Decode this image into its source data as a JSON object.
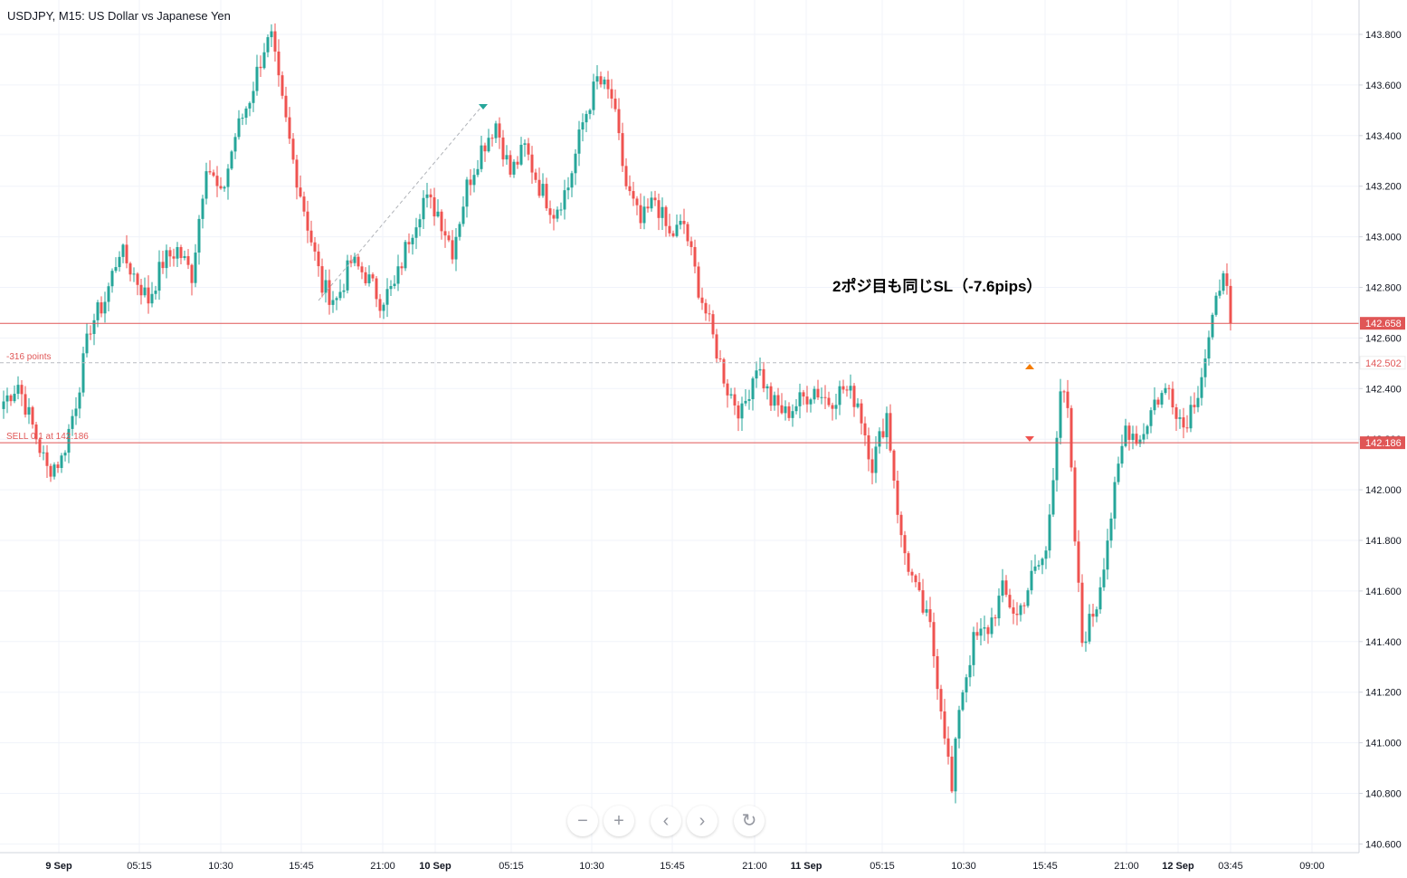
{
  "header": {
    "title": "USDJPY, M15: US Dollar vs Japanese Yen"
  },
  "annotation": {
    "text": "2ポジ目も同じSL（-7.6pips）"
  },
  "navigation": {
    "zoom_out": "−",
    "zoom_in": "+",
    "scroll_left": "‹",
    "scroll_right": "›",
    "reset": "↻"
  },
  "colors": {
    "up": "#26a69a",
    "down": "#ef5350",
    "grid": "#f0f3fa",
    "axis_text": "#131722",
    "sl_line": "#e05656"
  },
  "chart_data": {
    "type": "candlestick",
    "symbol": "USDJPY",
    "timeframe": "M15",
    "ylim": [
      140.58,
      143.92
    ],
    "y_ticks": [
      "143.800",
      "143.600",
      "143.400",
      "143.200",
      "143.000",
      "142.800",
      "142.600",
      "142.400",
      "142.200",
      "142.000",
      "141.800",
      "141.600",
      "141.400",
      "141.200",
      "141.000",
      "140.800",
      "140.600"
    ],
    "x_ticks": [
      {
        "label": "9 Sep",
        "bold": true,
        "index": 0
      },
      {
        "label": "05:15",
        "bold": false,
        "index": 1
      },
      {
        "label": "10:30",
        "bold": false,
        "index": 2
      },
      {
        "label": "15:45",
        "bold": false,
        "index": 3
      },
      {
        "label": "21:00",
        "bold": false,
        "index": 4
      },
      {
        "label": "10 Sep",
        "bold": true,
        "index": 5
      },
      {
        "label": "05:15",
        "bold": false,
        "index": 6
      },
      {
        "label": "10:30",
        "bold": false,
        "index": 7
      },
      {
        "label": "15:45",
        "bold": false,
        "index": 8
      },
      {
        "label": "21:00",
        "bold": false,
        "index": 9
      },
      {
        "label": "11 Sep",
        "bold": true,
        "index": 10
      },
      {
        "label": "05:15",
        "bold": false,
        "index": 11
      },
      {
        "label": "10:30",
        "bold": false,
        "index": 12
      },
      {
        "label": "15:45",
        "bold": false,
        "index": 13
      },
      {
        "label": "21:00",
        "bold": false,
        "index": 14
      },
      {
        "label": "12 Sep",
        "bold": true,
        "index": 15
      },
      {
        "label": "03:45",
        "bold": false,
        "index": 16
      },
      {
        "label": "09:00",
        "bold": false,
        "index": 17
      }
    ],
    "price_levels": [
      {
        "name": "sl-line",
        "price": 142.658,
        "label": "142.658",
        "style": "solid"
      },
      {
        "name": "target-line",
        "price": 142.502,
        "label": "142.502",
        "style": "dashed",
        "text": "-316 points"
      },
      {
        "name": "entry-line",
        "price": 142.186,
        "label": "142.186",
        "style": "solid",
        "text": "SELL 0.1 at 142.186"
      }
    ],
    "waypoints": [
      [
        0,
        142.35
      ],
      [
        4,
        142.42
      ],
      [
        8,
        142.25
      ],
      [
        12,
        142.08
      ],
      [
        16,
        142.12
      ],
      [
        20,
        142.35
      ],
      [
        24,
        142.65
      ],
      [
        28,
        142.75
      ],
      [
        32,
        142.95
      ],
      [
        36,
        142.85
      ],
      [
        40,
        142.75
      ],
      [
        44,
        142.9
      ],
      [
        48,
        142.95
      ],
      [
        52,
        142.85
      ],
      [
        56,
        143.3
      ],
      [
        60,
        143.15
      ],
      [
        64,
        143.4
      ],
      [
        68,
        143.55
      ],
      [
        72,
        143.75
      ],
      [
        74,
        143.78
      ],
      [
        76,
        143.6
      ],
      [
        80,
        143.3
      ],
      [
        84,
        143.05
      ],
      [
        88,
        142.8
      ],
      [
        92,
        142.75
      ],
      [
        96,
        142.9
      ],
      [
        100,
        142.85
      ],
      [
        104,
        142.75
      ],
      [
        108,
        142.8
      ],
      [
        112,
        143.0
      ],
      [
        116,
        143.15
      ],
      [
        120,
        143.1
      ],
      [
        124,
        142.95
      ],
      [
        128,
        143.2
      ],
      [
        132,
        143.35
      ],
      [
        136,
        143.45
      ],
      [
        140,
        143.25
      ],
      [
        144,
        143.35
      ],
      [
        148,
        143.2
      ],
      [
        152,
        143.1
      ],
      [
        156,
        143.2
      ],
      [
        160,
        143.45
      ],
      [
        164,
        143.62
      ],
      [
        168,
        143.55
      ],
      [
        172,
        143.2
      ],
      [
        176,
        143.05
      ],
      [
        180,
        143.15
      ],
      [
        184,
        143.0
      ],
      [
        188,
        143.05
      ],
      [
        192,
        142.8
      ],
      [
        196,
        142.6
      ],
      [
        200,
        142.4
      ],
      [
        204,
        142.3
      ],
      [
        208,
        142.5
      ],
      [
        212,
        142.35
      ],
      [
        216,
        142.3
      ],
      [
        220,
        142.35
      ],
      [
        224,
        142.4
      ],
      [
        228,
        142.35
      ],
      [
        232,
        142.4
      ],
      [
        236,
        142.35
      ],
      [
        240,
        142.1
      ],
      [
        244,
        142.3
      ],
      [
        248,
        141.8
      ],
      [
        252,
        141.6
      ],
      [
        256,
        141.45
      ],
      [
        260,
        141.05
      ],
      [
        262,
        140.8
      ],
      [
        264,
        141.15
      ],
      [
        268,
        141.4
      ],
      [
        272,
        141.45
      ],
      [
        276,
        141.6
      ],
      [
        280,
        141.5
      ],
      [
        284,
        141.65
      ],
      [
        288,
        141.75
      ],
      [
        292,
        142.4
      ],
      [
        294,
        142.3
      ],
      [
        296,
        141.8
      ],
      [
        298,
        141.4
      ],
      [
        302,
        141.55
      ],
      [
        306,
        141.9
      ],
      [
        310,
        142.25
      ],
      [
        314,
        142.2
      ],
      [
        318,
        142.35
      ],
      [
        322,
        142.4
      ],
      [
        326,
        142.25
      ],
      [
        330,
        142.4
      ],
      [
        334,
        142.65
      ],
      [
        337,
        142.9
      ],
      [
        339,
        142.65
      ]
    ]
  }
}
